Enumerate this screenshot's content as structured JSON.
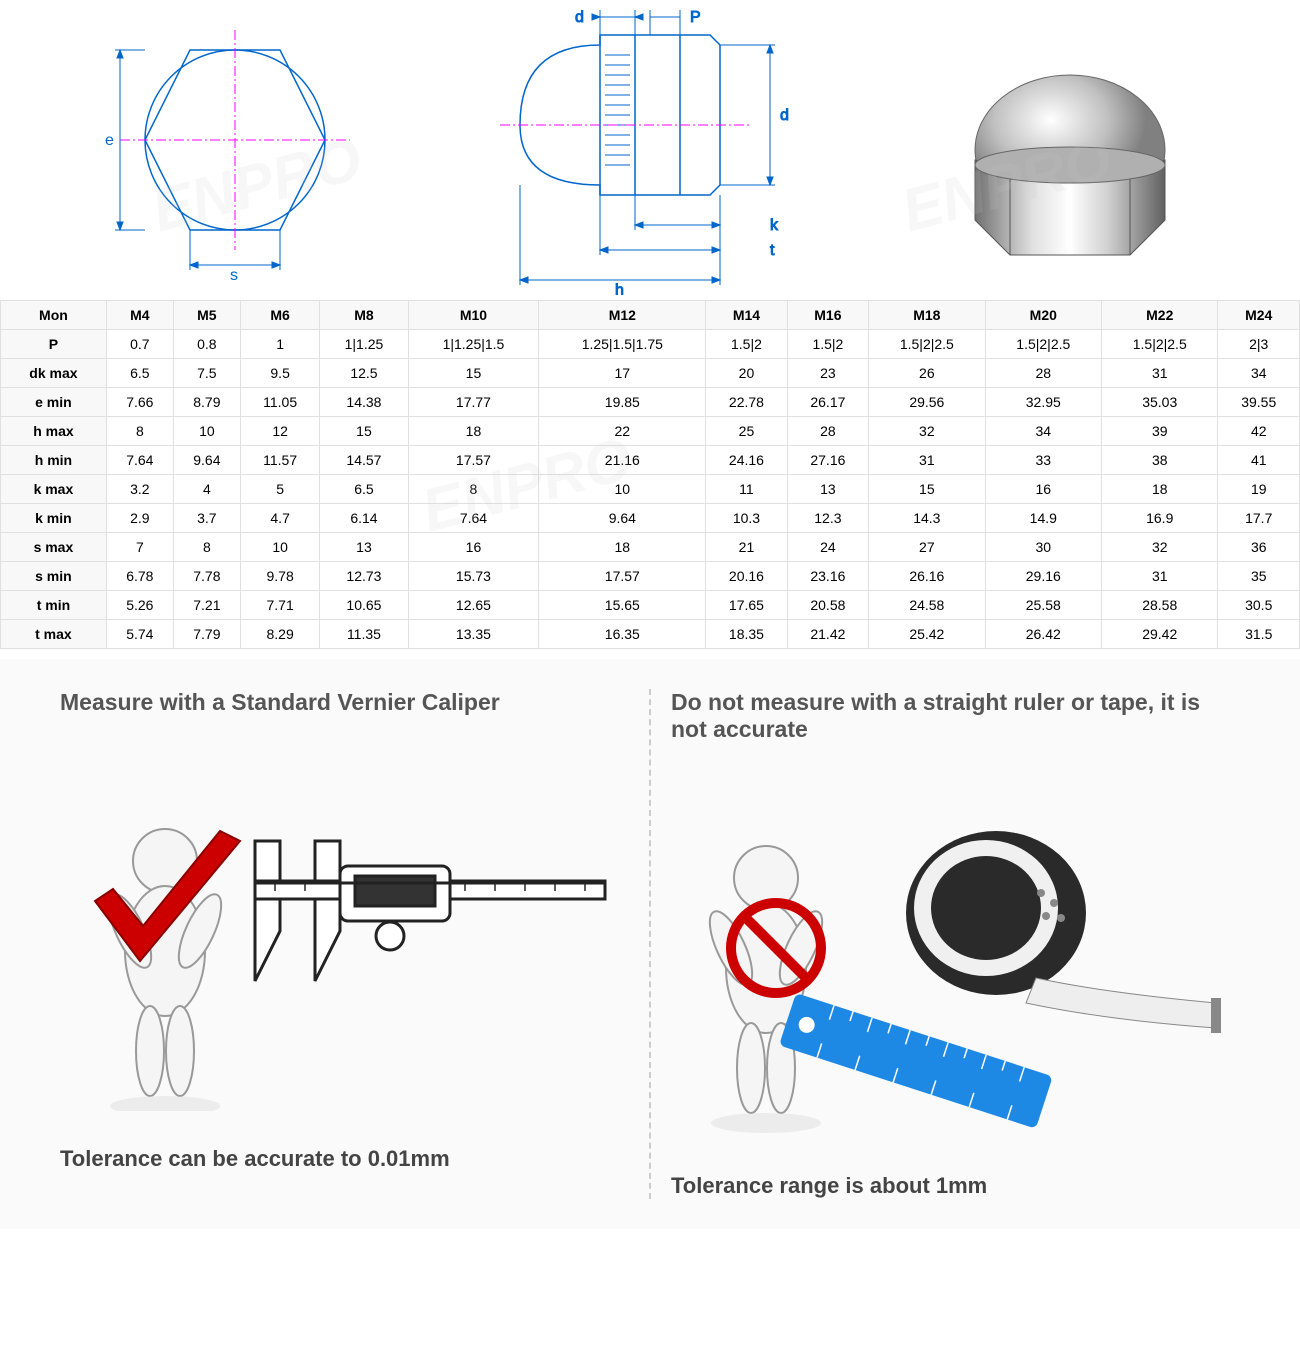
{
  "diagrams": {
    "labels": {
      "e": "e",
      "s": "s",
      "d": "d",
      "P": "P",
      "k": "k",
      "t": "t",
      "h": "h"
    },
    "line_color": "#0066cc",
    "center_color": "#ff00ff",
    "outline_color": "#0066cc"
  },
  "table": {
    "header": [
      "Mon",
      "M4",
      "M5",
      "M6",
      "M8",
      "M10",
      "M12",
      "M14",
      "M16",
      "M18",
      "M20",
      "M22",
      "M24"
    ],
    "rows": [
      {
        "label": "P",
        "values": [
          "0.7",
          "0.8",
          "1",
          "1|1.25",
          "1|1.25|1.5",
          "1.25|1.5|1.75",
          "1.5|2",
          "1.5|2",
          "1.5|2|2.5",
          "1.5|2|2.5",
          "1.5|2|2.5",
          "2|3"
        ]
      },
      {
        "label": "dk max",
        "values": [
          "6.5",
          "7.5",
          "9.5",
          "12.5",
          "15",
          "17",
          "20",
          "23",
          "26",
          "28",
          "31",
          "34"
        ]
      },
      {
        "label": "e min",
        "values": [
          "7.66",
          "8.79",
          "11.05",
          "14.38",
          "17.77",
          "19.85",
          "22.78",
          "26.17",
          "29.56",
          "32.95",
          "35.03",
          "39.55"
        ]
      },
      {
        "label": "h max",
        "values": [
          "8",
          "10",
          "12",
          "15",
          "18",
          "22",
          "25",
          "28",
          "32",
          "34",
          "39",
          "42"
        ]
      },
      {
        "label": "h min",
        "values": [
          "7.64",
          "9.64",
          "11.57",
          "14.57",
          "17.57",
          "21.16",
          "24.16",
          "27.16",
          "31",
          "33",
          "38",
          "41"
        ]
      },
      {
        "label": "k max",
        "values": [
          "3.2",
          "4",
          "5",
          "6.5",
          "8",
          "10",
          "11",
          "13",
          "15",
          "16",
          "18",
          "19"
        ]
      },
      {
        "label": "k min",
        "values": [
          "2.9",
          "3.7",
          "4.7",
          "6.14",
          "7.64",
          "9.64",
          "10.3",
          "12.3",
          "14.3",
          "14.9",
          "16.9",
          "17.7"
        ]
      },
      {
        "label": "s max",
        "values": [
          "7",
          "8",
          "10",
          "13",
          "16",
          "18",
          "21",
          "24",
          "27",
          "30",
          "32",
          "36"
        ]
      },
      {
        "label": "s min",
        "values": [
          "6.78",
          "7.78",
          "9.78",
          "12.73",
          "15.73",
          "17.57",
          "20.16",
          "23.16",
          "26.16",
          "29.16",
          "31",
          "35"
        ]
      },
      {
        "label": "t min",
        "values": [
          "5.26",
          "7.21",
          "7.71",
          "10.65",
          "12.65",
          "15.65",
          "17.65",
          "20.58",
          "24.58",
          "25.58",
          "28.58",
          "30.5"
        ]
      },
      {
        "label": "t max",
        "values": [
          "5.74",
          "7.79",
          "8.29",
          "11.35",
          "13.35",
          "16.35",
          "18.35",
          "21.42",
          "25.42",
          "26.42",
          "29.42",
          "31.5"
        ]
      }
    ],
    "header_bg": "#f8f8f8",
    "border_color": "#e0e0e0",
    "font_size": 14
  },
  "bottom": {
    "left": {
      "title": "Measure with a Standard Vernier Caliper",
      "caption": "Tolerance can be accurate to 0.01mm",
      "check_color": "#cc0000"
    },
    "right": {
      "title": "Do not measure with a straight ruler or tape, it is not accurate",
      "caption": "Tolerance range is about 1mm",
      "prohibit_color": "#cc0000",
      "ruler_color": "#1e88e5"
    }
  },
  "watermark": "ENPRO"
}
